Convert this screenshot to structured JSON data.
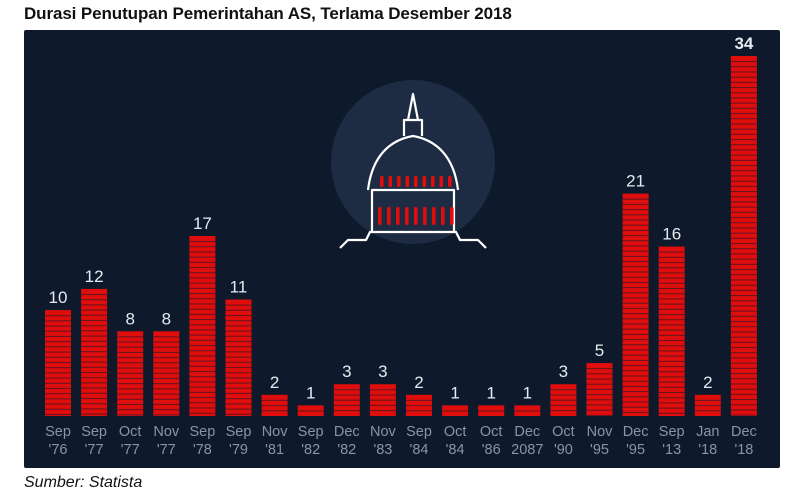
{
  "header": {
    "title": "Durasi Penutupan Pemerintahan AS, Terlama Desember 2018"
  },
  "footer": {
    "source": "Sumber: Statista"
  },
  "colors": {
    "background": "#0e1a2b",
    "bar": "#e00d0d",
    "stripe": "#0e1a2b",
    "label": "#e6eaf0",
    "tick": "#8895a8",
    "glow": "#1d2c42",
    "icon": "#ffffff"
  },
  "icon": "capitol-dome-icon",
  "chart_data": {
    "type": "bar",
    "title": "Durasi Penutupan Pemerintahan AS, Terlama Desember 2018",
    "xlabel": "",
    "ylabel": "",
    "ylim": [
      0,
      34
    ],
    "grid": false,
    "categories": [
      [
        "Sep",
        "'76"
      ],
      [
        "Sep",
        "'77"
      ],
      [
        "Oct",
        "'77"
      ],
      [
        "Nov",
        "'77"
      ],
      [
        "Sep",
        "'78"
      ],
      [
        "Sep",
        "'79"
      ],
      [
        "Nov",
        "'81"
      ],
      [
        "Sep",
        "'82"
      ],
      [
        "Dec",
        "'82"
      ],
      [
        "Nov",
        "'83"
      ],
      [
        "Sep",
        "'84"
      ],
      [
        "Oct",
        "'84"
      ],
      [
        "Oct",
        "'86"
      ],
      [
        "Dec",
        "2087"
      ],
      [
        "Oct",
        "'90"
      ],
      [
        "Nov",
        "'95"
      ],
      [
        "Dec",
        "'95"
      ],
      [
        "Sep",
        "'13"
      ],
      [
        "Jan",
        "'18"
      ],
      [
        "Dec",
        "'18"
      ]
    ],
    "values": [
      10,
      12,
      8,
      8,
      17,
      11,
      2,
      1,
      3,
      3,
      2,
      1,
      1,
      1,
      3,
      5,
      21,
      16,
      2,
      34
    ],
    "highlight_index": 19
  }
}
